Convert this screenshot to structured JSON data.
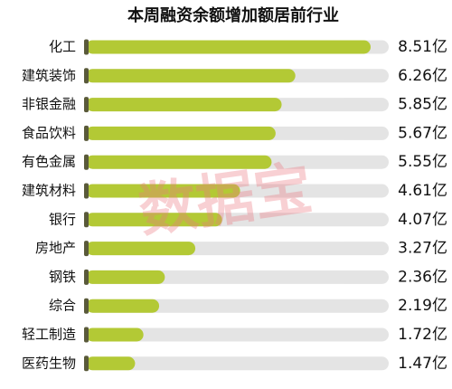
{
  "chart_data": {
    "type": "bar",
    "orientation": "horizontal",
    "title": "本周融资余额增加额居前行业",
    "categories": [
      "化工",
      "建筑装饰",
      "非银金融",
      "食品饮料",
      "有色金属",
      "建筑材料",
      "银行",
      "房地产",
      "钢铁",
      "综合",
      "轻工制造",
      "医药生物"
    ],
    "values": [
      8.51,
      6.26,
      5.85,
      5.67,
      5.55,
      4.61,
      4.07,
      3.27,
      2.36,
      2.19,
      1.72,
      1.47
    ],
    "value_labels": [
      "8.51亿",
      "6.26亿",
      "5.85亿",
      "5.67亿",
      "5.55亿",
      "4.61亿",
      "4.07亿",
      "3.27亿",
      "2.36亿",
      "2.19亿",
      "1.72亿",
      "1.47亿"
    ],
    "color": "#b3c935",
    "track_color": "#e4e4e4",
    "watermark": "数据宝"
  }
}
